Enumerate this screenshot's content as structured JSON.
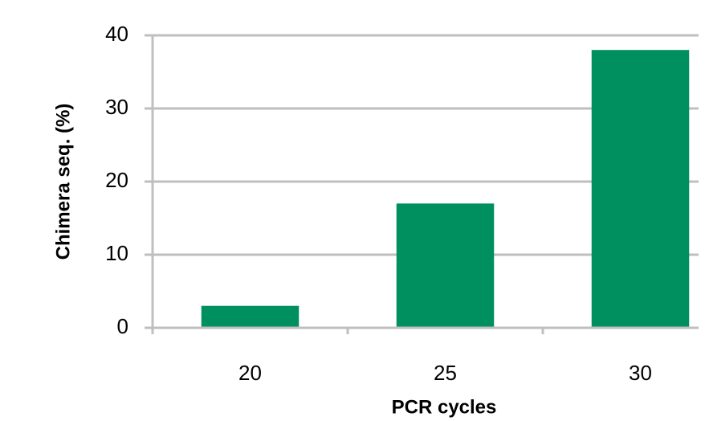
{
  "chart_data": {
    "type": "bar",
    "x_label": "PCR cycles",
    "y_label": "Chimera seq. (%)",
    "categories": [
      "20",
      "25",
      "30"
    ],
    "values": [
      3,
      17,
      38
    ],
    "color": "#008f5f",
    "ylim": [
      0,
      40
    ],
    "yticks": [
      0,
      10,
      20,
      30,
      40
    ],
    "grid": true
  }
}
